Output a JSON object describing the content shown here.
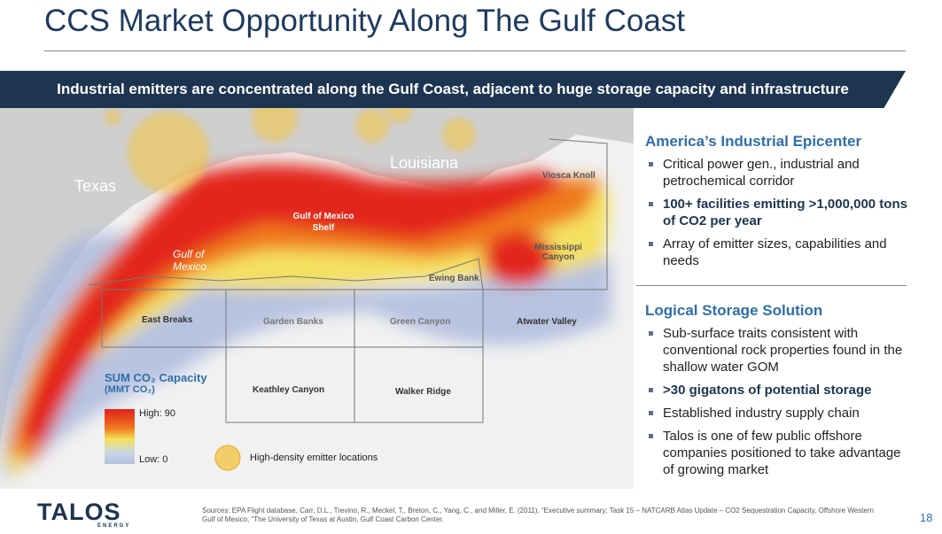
{
  "header": {
    "title": "CCS Market Opportunity Along The Gulf Coast"
  },
  "banner": "Industrial emitters are concentrated along the Gulf Coast, adjacent to huge storage capacity and infrastructure",
  "map": {
    "labels": [
      "Texas",
      "Louisiana",
      "Gulf of Mexico Shelf",
      "Gulf of Mexico",
      "Viosca Knoll",
      "Mississippi Canyon",
      "Ewing Bank",
      "East Breaks",
      "Garden Banks",
      "Green Canyon",
      "Atwater Valley",
      "Keathley Canyon",
      "Walker Ridge"
    ],
    "legend": {
      "title": "SUM CO₂ Capacity",
      "unit": "(MMT CO₂)",
      "high": "High: 90",
      "low": "Low: 0",
      "emitters": "High-density emitter locations"
    }
  },
  "panels": [
    {
      "heading": "America’s Industrial Epicenter",
      "bullets": [
        {
          "text": "Critical power gen., industrial and petrochemical corridor",
          "bold": false
        },
        {
          "text": "100+ facilities emitting >1,000,000 tons of CO2 per year",
          "bold": true
        },
        {
          "text": "Array of emitter sizes, capabilities and needs",
          "bold": false
        }
      ]
    },
    {
      "heading": "Logical Storage Solution",
      "bullets": [
        {
          "text": "Sub-surface traits consistent with conventional rock properties found in the shallow water GOM",
          "bold": false
        },
        {
          "text": ">30 gigatons of potential storage",
          "bold": true
        },
        {
          "text": "Established industry supply chain",
          "bold": false
        },
        {
          "text": "Talos is one of few public offshore companies positioned to take advantage of growing market",
          "bold": false
        }
      ]
    }
  ],
  "footer": {
    "logo": "TALOS",
    "logo_sub": "ENERGY",
    "sources": "Sources: EPA Flight database, Carr, D.L., Trevino, R., Meckel, T., Breton, C., Yang, C., and Miller, E. (2011). “Executive summary; Task 15 – NATCARB Atlas Update – CO2 Sequestration Capacity, Offshore Western Gulf of Mexico, “The University of Texas at Austin, Gulf Coast Carbon Center.",
    "page": "18"
  }
}
